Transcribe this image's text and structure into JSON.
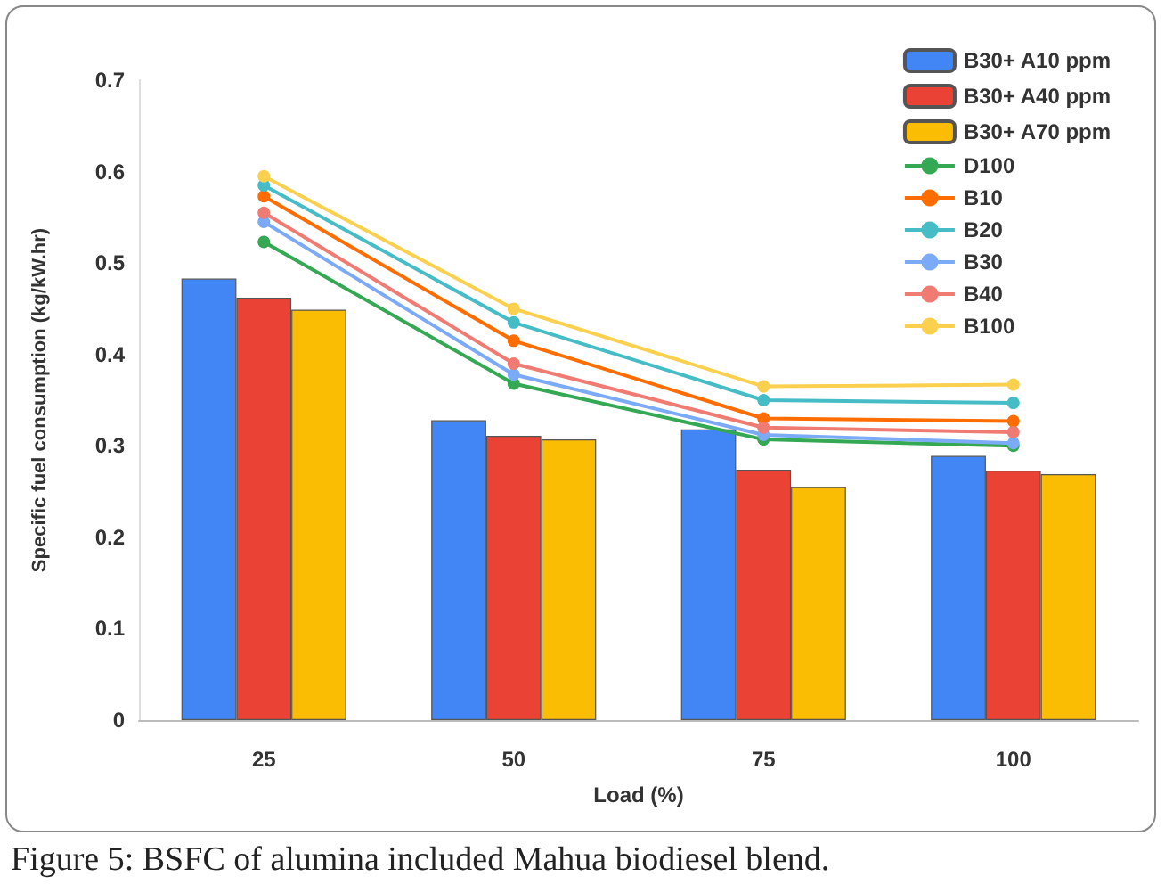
{
  "chart_data": {
    "type": "bar",
    "xlabel": "Load (%)",
    "ylabel": "Specific fuel consumption (kg/kW.hr)",
    "categories": [
      "25",
      "50",
      "75",
      "100"
    ],
    "series": [
      {
        "name": "B30+ A10 ppm",
        "color": "#4285f4",
        "values": [
          0.483,
          0.328,
          0.318,
          0.289
        ]
      },
      {
        "name": "B30+ A40 ppm",
        "color": "#ea4335",
        "values": [
          0.462,
          0.311,
          0.274,
          0.273
        ]
      },
      {
        "name": "B30+ A70 ppm",
        "color": "#fbbc04",
        "values": [
          0.449,
          0.307,
          0.255,
          0.269
        ]
      },
      {
        "name": "D100",
        "type": "line",
        "color": "#34a853",
        "values": [
          0.523,
          0.368,
          0.307,
          0.3
        ]
      },
      {
        "name": "B10",
        "type": "line",
        "color": "#ff6d01",
        "values": [
          0.573,
          0.415,
          0.33,
          0.327
        ]
      },
      {
        "name": "B20",
        "type": "line",
        "color": "#46bdc6",
        "values": [
          0.585,
          0.435,
          0.35,
          0.347
        ]
      },
      {
        "name": "B30",
        "type": "line",
        "color": "#7baaf7",
        "values": [
          0.545,
          0.378,
          0.312,
          0.303
        ]
      },
      {
        "name": "B40",
        "type": "line",
        "color": "#f07b72",
        "values": [
          0.555,
          0.39,
          0.32,
          0.315
        ]
      },
      {
        "name": "B100",
        "type": "line",
        "color": "#fcd04f",
        "values": [
          0.595,
          0.45,
          0.365,
          0.367
        ]
      }
    ],
    "ylim": [
      0,
      0.7
    ],
    "yticks": [
      0,
      0.1,
      0.2,
      0.3,
      0.4,
      0.5,
      0.6,
      0.7
    ],
    "grid": false,
    "legend": "top right",
    "marker": "circle",
    "line_style": "solid",
    "annotations": [
      "Figure 5: BSFC of alumina included Mahua biodiesel blend."
    ]
  }
}
